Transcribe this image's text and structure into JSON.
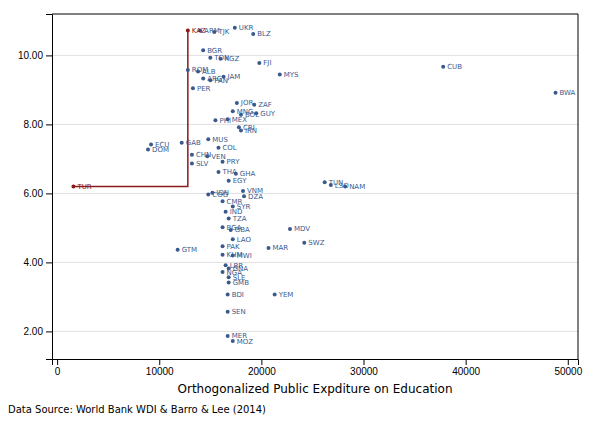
{
  "chart_data": {
    "type": "scatter",
    "xlabel": "Orthogonalized Public Expditure on Education",
    "source": "Data Source: World Bank WDI & Barro & Lee (2014)",
    "xlim": [
      -500,
      51000
    ],
    "ylim": [
      1.2,
      11.2
    ],
    "xticks": [
      0,
      10000,
      20000,
      30000,
      40000,
      50000
    ],
    "yticks": [
      {
        "value": 2.0,
        "label": "2.00"
      },
      {
        "value": 4.0,
        "label": "4.00"
      },
      {
        "value": 6.0,
        "label": "6.00"
      },
      {
        "value": 8.0,
        "label": "8.00"
      },
      {
        "value": 10.0,
        "label": "10.00"
      }
    ],
    "grid": "y",
    "series": [
      {
        "type": "scatter",
        "labels": [
          "KAZ",
          "TUR",
          "UKR",
          "BLZ",
          "ARM",
          "TJK",
          "BGR",
          "TON",
          "KGZ",
          "FJI",
          "ROM",
          "ALB",
          "ARG",
          "PAN",
          "JAM",
          "MYS",
          "PER",
          "JOR",
          "ZAF",
          "MNG",
          "BOL",
          "GUY",
          "PHI",
          "MEX",
          "CRI",
          "IRN",
          "MUS",
          "GAB",
          "ECU",
          "DOM",
          "COL",
          "CHN",
          "VEN",
          "SLV",
          "PRY",
          "THA",
          "GHA",
          "EGY",
          "TUN",
          "LSO",
          "NAM",
          "IDN",
          "VNM",
          "COG",
          "DZA",
          "CMR",
          "SYR",
          "IND",
          "TZA",
          "BGA",
          "GBA",
          "MDV",
          "LAO",
          "SWZ",
          "PAK",
          "GTM",
          "MAR",
          "KHM",
          "MWI",
          "LBR",
          "GNA",
          "NGA",
          "SLE",
          "GMB",
          "BDI",
          "YEM",
          "SEN",
          "MER",
          "MOZ",
          "CUB",
          "BWA"
        ],
        "x": [
          12800,
          1600,
          17400,
          19200,
          14000,
          15400,
          14300,
          15000,
          16000,
          19800,
          12800,
          13800,
          14300,
          15000,
          16300,
          21800,
          13300,
          17600,
          19300,
          17200,
          18000,
          19500,
          15500,
          16700,
          17800,
          18000,
          14800,
          12200,
          9200,
          8900,
          15800,
          13200,
          14700,
          13200,
          16200,
          15800,
          17500,
          16800,
          26200,
          26800,
          28200,
          15200,
          18200,
          14800,
          18300,
          16200,
          17200,
          16500,
          16800,
          16200,
          17000,
          22800,
          17200,
          24200,
          16200,
          11800,
          20700,
          16200,
          17200,
          16500,
          16800,
          16200,
          16800,
          16800,
          16700,
          21300,
          16700,
          16700,
          17200,
          37800,
          48800
        ],
        "values": [
          10.72,
          6.2,
          10.8,
          10.62,
          10.72,
          10.68,
          10.15,
          9.93,
          9.9,
          9.78,
          9.58,
          9.53,
          9.33,
          9.28,
          9.38,
          9.45,
          9.05,
          8.62,
          8.57,
          8.38,
          8.28,
          8.32,
          8.12,
          8.15,
          7.92,
          7.82,
          7.57,
          7.47,
          7.42,
          7.27,
          7.32,
          7.12,
          7.08,
          6.87,
          6.92,
          6.62,
          6.57,
          6.37,
          6.32,
          6.24,
          6.2,
          6.02,
          6.07,
          5.97,
          5.92,
          5.77,
          5.62,
          5.47,
          5.27,
          5.02,
          4.94,
          4.97,
          4.67,
          4.57,
          4.47,
          4.37,
          4.42,
          4.22,
          4.2,
          3.92,
          3.82,
          3.72,
          3.57,
          3.42,
          3.07,
          3.07,
          2.57,
          1.87,
          1.72,
          9.67,
          8.92
        ],
        "colors": [
          "#8b1a1a",
          "#8b1a1a",
          "#3a5a8c",
          "#3a5a8c",
          "#3a5a8c",
          "#3a5a8c",
          "#3a5a8c",
          "#3a5a8c",
          "#3a5a8c",
          "#3a5a8c",
          "#3a5a8c",
          "#3a5a8c",
          "#3a5a8c",
          "#3a5a8c",
          "#3a5a8c",
          "#3a5a8c",
          "#3a5a8c",
          "#3a5a8c",
          "#3a5a8c",
          "#3a5a8c",
          "#3a5a8c",
          "#3a5a8c",
          "#3a5a8c",
          "#3a5a8c",
          "#3a5a8c",
          "#3a5a8c",
          "#3a5a8c",
          "#3a5a8c",
          "#3a5a8c",
          "#3a5a8c",
          "#3a5a8c",
          "#3a5a8c",
          "#3a5a8c",
          "#3a5a8c",
          "#3a5a8c",
          "#3a5a8c",
          "#3a5a8c",
          "#3a5a8c",
          "#3a5a8c",
          "#3a5a8c",
          "#3a5a8c",
          "#3a5a8c",
          "#3a5a8c",
          "#3a5a8c",
          "#3a5a8c",
          "#3a5a8c",
          "#3a5a8c",
          "#3a5a8c",
          "#3a5a8c",
          "#3a5a8c",
          "#3a5a8c",
          "#3a5a8c",
          "#3a5a8c",
          "#3a5a8c",
          "#3a5a8c",
          "#3a5a8c",
          "#3a5a8c",
          "#3a5a8c",
          "#3a5a8c",
          "#3a5a8c",
          "#3a5a8c",
          "#3a5a8c",
          "#3a5a8c",
          "#3a5a8c",
          "#3a5a8c",
          "#3a5a8c",
          "#3a5a8c",
          "#3a5a8c",
          "#3a5a8c",
          "#3a5a8c",
          "#3a5a8c"
        ]
      },
      {
        "type": "line",
        "x": [
          12800,
          12800,
          1600
        ],
        "values": [
          10.72,
          6.2,
          6.2
        ],
        "color": "#8b1a1a"
      }
    ]
  }
}
